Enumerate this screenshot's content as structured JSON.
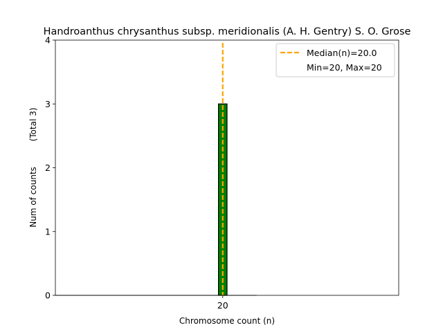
{
  "chart_data": {
    "type": "bar",
    "title": "Handroanthus chrysanthus subsp. meridionalis (A. H. Gentry) S. O. Grose",
    "xlabel": "Chromosome count (n)",
    "ylabel": "Num of counts",
    "ylabel_total": "(Total 3)",
    "categories": [
      "20"
    ],
    "x": [
      20
    ],
    "values": [
      3
    ],
    "xlim": [
      0.5,
      40.5
    ],
    "ylim": [
      0,
      4
    ],
    "yticks": [
      "0",
      "1",
      "2",
      "3",
      "4"
    ],
    "xticks": [
      "20"
    ],
    "grid": false,
    "bar_color": "#008000",
    "bar_edge_color": "#000000",
    "median": 20.0,
    "median_color": "#FFA500",
    "legend": {
      "placement": "top-right",
      "entries": [
        "Median(n)=20.0",
        "Min=20, Max=20"
      ]
    }
  }
}
